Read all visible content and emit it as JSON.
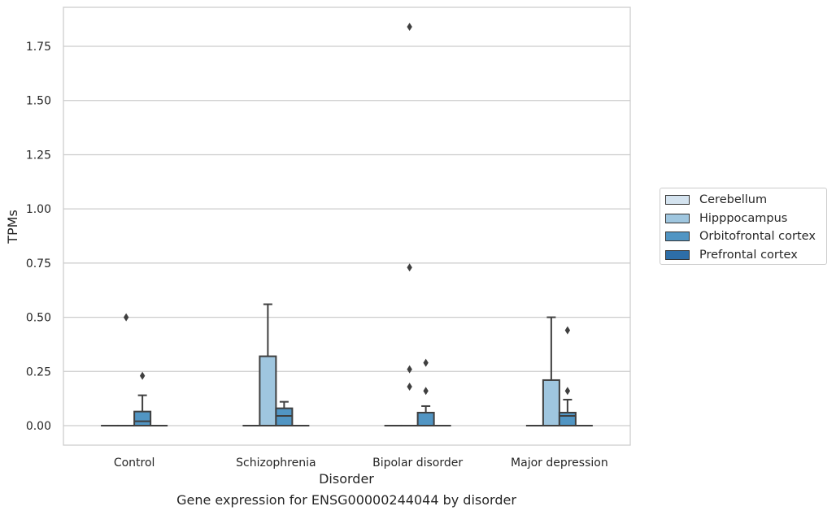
{
  "chart_data": {
    "type": "box",
    "xlabel": "Disorder",
    "ylabel": "TPMs",
    "caption": "Gene expression for ENSG00000244044 by disorder",
    "categories": [
      "Control",
      "Schizophrenia",
      "Bipolar disorder",
      "Major depression"
    ],
    "yticks": [
      0.0,
      0.25,
      0.5,
      0.75,
      1.0,
      1.25,
      1.5,
      1.75
    ],
    "ytick_labels": [
      "0.00",
      "0.25",
      "0.50",
      "0.75",
      "1.00",
      "1.25",
      "1.50",
      "1.75"
    ],
    "ylim": [
      -0.09,
      1.93
    ],
    "grid": "horizontal",
    "legend_position": "right",
    "series": [
      {
        "name": "Cerebellum",
        "color": "#d4e3ef",
        "boxes": [
          {
            "q1": 0,
            "median": 0,
            "q3": 0,
            "whisker_low": 0,
            "whisker_high": 0,
            "outliers": []
          },
          {
            "q1": 0,
            "median": 0,
            "q3": 0,
            "whisker_low": 0,
            "whisker_high": 0,
            "outliers": []
          },
          {
            "q1": 0,
            "median": 0,
            "q3": 0,
            "whisker_low": 0,
            "whisker_high": 0,
            "outliers": []
          },
          {
            "q1": 0,
            "median": 0,
            "q3": 0,
            "whisker_low": 0,
            "whisker_high": 0,
            "outliers": []
          }
        ]
      },
      {
        "name": "Hipppocampus",
        "color": "#9fc6df",
        "boxes": [
          {
            "q1": 0,
            "median": 0,
            "q3": 0,
            "whisker_low": 0,
            "whisker_high": 0,
            "outliers": [
              0.5
            ]
          },
          {
            "q1": 0,
            "median": 0,
            "q3": 0.32,
            "whisker_low": 0,
            "whisker_high": 0.56,
            "outliers": []
          },
          {
            "q1": 0,
            "median": 0,
            "q3": 0,
            "whisker_low": 0,
            "whisker_high": 0,
            "outliers": [
              0.18,
              0.26,
              0.73,
              1.84
            ]
          },
          {
            "q1": 0,
            "median": 0,
            "q3": 0.21,
            "whisker_low": 0,
            "whisker_high": 0.5,
            "outliers": []
          }
        ]
      },
      {
        "name": "Orbitofrontal cortex",
        "color": "#5195c3",
        "boxes": [
          {
            "q1": 0,
            "median": 0.02,
            "q3": 0.065,
            "whisker_low": 0,
            "whisker_high": 0.14,
            "outliers": [
              0.23
            ]
          },
          {
            "q1": 0,
            "median": 0.045,
            "q3": 0.08,
            "whisker_low": 0,
            "whisker_high": 0.11,
            "outliers": []
          },
          {
            "q1": 0,
            "median": 0,
            "q3": 0.06,
            "whisker_low": 0,
            "whisker_high": 0.09,
            "outliers": [
              0.16,
              0.29
            ]
          },
          {
            "q1": 0,
            "median": 0.045,
            "q3": 0.06,
            "whisker_low": 0,
            "whisker_high": 0.12,
            "outliers": [
              0.16,
              0.44
            ]
          }
        ]
      },
      {
        "name": "Prefrontal cortex",
        "color": "#2d6ea8",
        "boxes": [
          {
            "q1": 0,
            "median": 0,
            "q3": 0,
            "whisker_low": 0,
            "whisker_high": 0,
            "outliers": []
          },
          {
            "q1": 0,
            "median": 0,
            "q3": 0,
            "whisker_low": 0,
            "whisker_high": 0,
            "outliers": []
          },
          {
            "q1": 0,
            "median": 0,
            "q3": 0,
            "whisker_low": 0,
            "whisker_high": 0,
            "outliers": []
          },
          {
            "q1": 0,
            "median": 0,
            "q3": 0,
            "whisker_low": 0,
            "whisker_high": 0,
            "outliers": []
          }
        ]
      }
    ]
  }
}
